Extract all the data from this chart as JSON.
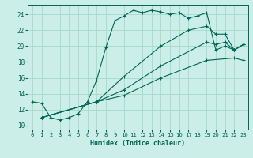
{
  "xlabel": "Humidex (Indice chaleur)",
  "bg_color": "#cceee8",
  "line_color": "#006655",
  "grid_color": "#aaddcc",
  "xlim": [
    -0.5,
    23.5
  ],
  "ylim": [
    9.5,
    25.2
  ],
  "xticks": [
    0,
    1,
    2,
    3,
    4,
    5,
    6,
    7,
    8,
    9,
    10,
    11,
    12,
    13,
    14,
    15,
    16,
    17,
    18,
    19,
    20,
    21,
    22,
    23
  ],
  "yticks": [
    10,
    12,
    14,
    16,
    18,
    20,
    22,
    24
  ],
  "line1_x": [
    0,
    1,
    2,
    3,
    4,
    5,
    6,
    7,
    8,
    9,
    10,
    11,
    12,
    13,
    14,
    15,
    16,
    17,
    18,
    19,
    20,
    21,
    22,
    23
  ],
  "line1_y": [
    13.0,
    12.8,
    11.0,
    10.7,
    11.0,
    11.5,
    13.0,
    15.7,
    19.8,
    23.2,
    23.8,
    24.5,
    24.2,
    24.5,
    24.3,
    24.0,
    24.2,
    23.5,
    23.8,
    24.2,
    19.5,
    20.0,
    19.5,
    20.2
  ],
  "line2_x": [
    1,
    7,
    10,
    14,
    17,
    19,
    20,
    21,
    22,
    23
  ],
  "line2_y": [
    11.0,
    13.0,
    16.2,
    20.0,
    22.0,
    22.5,
    21.5,
    21.5,
    19.5,
    20.2
  ],
  "line3_x": [
    1,
    7,
    10,
    14,
    19,
    20,
    21,
    22,
    23
  ],
  "line3_y": [
    11.0,
    13.0,
    14.5,
    17.5,
    20.5,
    20.2,
    20.5,
    19.5,
    20.2
  ],
  "line4_x": [
    1,
    7,
    10,
    14,
    19,
    22,
    23
  ],
  "line4_y": [
    11.0,
    13.0,
    13.8,
    16.0,
    18.2,
    18.5,
    18.2
  ]
}
